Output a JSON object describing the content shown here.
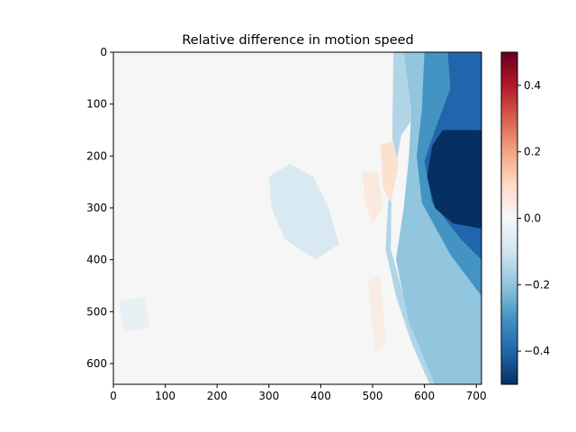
{
  "chart_data": {
    "type": "heatmap",
    "title": "Relative difference in motion speed",
    "xlabel": "",
    "ylabel": "",
    "xlim": [
      0,
      710
    ],
    "ylim": [
      640,
      0
    ],
    "x_ticks": [
      0,
      100,
      200,
      300,
      400,
      500,
      600,
      700
    ],
    "y_ticks": [
      0,
      100,
      200,
      300,
      400,
      500,
      600
    ],
    "colormap": "RdBu_r",
    "vmin": -0.5,
    "vmax": 0.5,
    "colorbar": {
      "ticks": [
        0.4,
        0.2,
        0.0,
        -0.2,
        -0.4
      ],
      "tick_labels": [
        "0.4",
        "0.2",
        "0.0",
        "−0.2",
        "−0.4"
      ]
    },
    "regions": [
      {
        "shape": "polygon",
        "value": -0.15,
        "points": [
          [
            540,
            0
          ],
          [
            600,
            0
          ],
          [
            590,
            110
          ],
          [
            555,
            160
          ],
          [
            545,
            220
          ],
          [
            530,
            290
          ],
          [
            525,
            380
          ],
          [
            545,
            470
          ],
          [
            575,
            560
          ],
          [
            610,
            640
          ],
          [
            640,
            640
          ],
          [
            560,
            470
          ],
          [
            535,
            380
          ]
        ]
      },
      {
        "shape": "polygon",
        "value": -0.2,
        "points": [
          [
            560,
            0
          ],
          [
            710,
            0
          ],
          [
            710,
            640
          ],
          [
            620,
            640
          ],
          [
            570,
            520
          ],
          [
            545,
            400
          ],
          [
            560,
            300
          ],
          [
            570,
            200
          ],
          [
            575,
            110
          ]
        ]
      },
      {
        "shape": "polygon",
        "value": -0.3,
        "points": [
          [
            600,
            0
          ],
          [
            710,
            0
          ],
          [
            710,
            470
          ],
          [
            650,
            390
          ],
          [
            595,
            290
          ],
          [
            585,
            200
          ],
          [
            595,
            110
          ]
        ]
      },
      {
        "shape": "polygon",
        "value": -0.4,
        "points": [
          [
            645,
            0
          ],
          [
            710,
            0
          ],
          [
            710,
            400
          ],
          [
            670,
            360
          ],
          [
            615,
            290
          ],
          [
            600,
            210
          ],
          [
            620,
            150
          ],
          [
            650,
            70
          ]
        ]
      },
      {
        "shape": "polygon",
        "value": -0.5,
        "points": [
          [
            635,
            150
          ],
          [
            710,
            150
          ],
          [
            710,
            340
          ],
          [
            655,
            330
          ],
          [
            620,
            300
          ],
          [
            605,
            240
          ],
          [
            615,
            180
          ]
        ]
      },
      {
        "shape": "polygon",
        "value": -0.08,
        "points": [
          [
            300,
            240
          ],
          [
            340,
            215
          ],
          [
            385,
            240
          ],
          [
            415,
            300
          ],
          [
            435,
            370
          ],
          [
            390,
            400
          ],
          [
            330,
            360
          ],
          [
            305,
            300
          ]
        ]
      },
      {
        "shape": "polygon",
        "value": 0.08,
        "points": [
          [
            515,
            180
          ],
          [
            540,
            170
          ],
          [
            550,
            220
          ],
          [
            535,
            290
          ],
          [
            520,
            260
          ]
        ]
      },
      {
        "shape": "polygon",
        "value": 0.05,
        "points": [
          [
            480,
            230
          ],
          [
            510,
            230
          ],
          [
            520,
            300
          ],
          [
            500,
            330
          ],
          [
            485,
            290
          ]
        ]
      },
      {
        "shape": "polygon",
        "value": 0.04,
        "points": [
          [
            490,
            440
          ],
          [
            515,
            430
          ],
          [
            525,
            560
          ],
          [
            505,
            580
          ]
        ]
      },
      {
        "shape": "polygon",
        "value": -0.04,
        "points": [
          [
            10,
            480
          ],
          [
            60,
            470
          ],
          [
            70,
            530
          ],
          [
            20,
            540
          ]
        ]
      }
    ]
  }
}
